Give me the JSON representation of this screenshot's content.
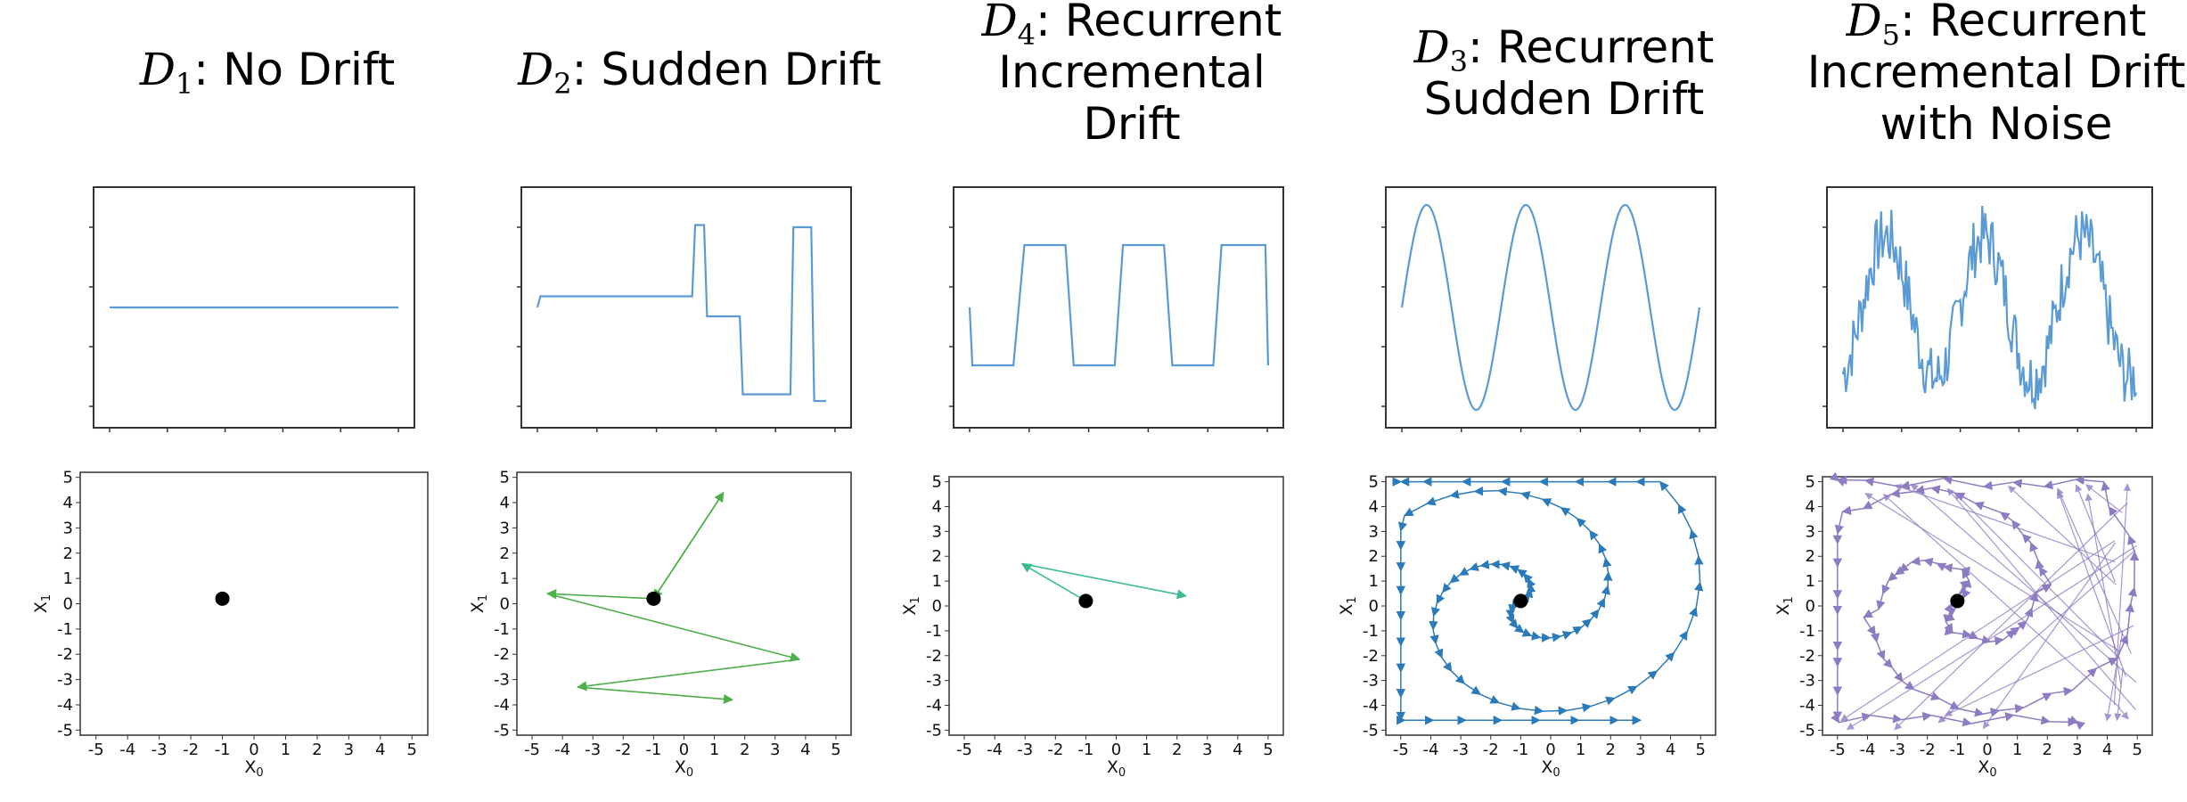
{
  "panels": [
    {
      "id": "d1",
      "title_var": "D",
      "title_sub": "1",
      "title_lines": [
        ": No Drift"
      ],
      "line_color": "#5b9bd5",
      "arrow_color": "#4472c4",
      "line_values": [
        [
          0,
          0.5
        ],
        [
          1,
          0.5
        ]
      ],
      "trajectory": [],
      "start_point": [
        -1,
        0.2
      ],
      "arrows_style": "none"
    },
    {
      "id": "d2",
      "title_var": "D",
      "title_sub": "2",
      "title_lines": [
        ": Sudden Drift"
      ],
      "line_color": "#5b9bd5",
      "arrow_color": "#4daf4a",
      "line_values": [
        [
          0,
          0.5
        ],
        [
          0.01,
          0.55
        ],
        [
          0.52,
          0.55
        ],
        [
          0.53,
          0.87
        ],
        [
          0.56,
          0.87
        ],
        [
          0.57,
          0.46
        ],
        [
          0.68,
          0.46
        ],
        [
          0.69,
          0.11
        ],
        [
          0.85,
          0.11
        ],
        [
          0.86,
          0.86
        ],
        [
          0.92,
          0.86
        ],
        [
          0.93,
          0.08
        ],
        [
          0.97,
          0.08
        ]
      ],
      "trajectory": [
        [
          -1,
          0.2
        ],
        [
          1.3,
          4.4
        ],
        [
          -1,
          0.2
        ],
        [
          -4.5,
          0.4
        ],
        [
          3.8,
          -2.2
        ],
        [
          -3.5,
          -3.3
        ],
        [
          1.6,
          -3.8
        ]
      ],
      "start_point": [
        -1,
        0.2
      ],
      "arrows_style": "segment"
    },
    {
      "id": "d4",
      "title_var": "D",
      "title_sub": "4",
      "title_lines": [
        ": Recurrent",
        "Incremental",
        "Drift"
      ],
      "line_color": "#5b9bd5",
      "arrow_color": "#3cbc8d",
      "line_values": [
        [
          0,
          0.5
        ],
        [
          0.01,
          0.24
        ],
        [
          0.16,
          0.24
        ],
        [
          0.2,
          0.78
        ],
        [
          0.35,
          0.78
        ],
        [
          0.38,
          0.24
        ],
        [
          0.53,
          0.24
        ],
        [
          0.56,
          0.78
        ],
        [
          0.71,
          0.78
        ],
        [
          0.74,
          0.24
        ],
        [
          0.89,
          0.24
        ],
        [
          0.92,
          0.78
        ],
        [
          1.08,
          0.78
        ],
        [
          1.09,
          0.24
        ]
      ],
      "trajectory": [
        [
          -1,
          0.2
        ],
        [
          -3.1,
          1.7
        ],
        [
          2.3,
          0.4
        ]
      ],
      "start_point": [
        -1,
        0.2
      ],
      "arrows_style": "segment"
    },
    {
      "id": "d3",
      "title_var": "D",
      "title_sub": "3",
      "title_lines": [
        ": Recurrent",
        "Sudden Drift"
      ],
      "line_color": "#5b9bd5",
      "arrow_color": "#2b7bba",
      "line_values": [],
      "trajectory": [],
      "start_point": [
        -1,
        0.2
      ],
      "arrows_style": "spiral"
    },
    {
      "id": "d5",
      "title_var": "D",
      "title_sub": "5",
      "title_lines": [
        ": Recurrent",
        "Incremental Drift",
        "with Noise"
      ],
      "line_color": "#5b9bd5",
      "arrow_color": "#8e7cc3",
      "line_values": [],
      "trajectory": [],
      "start_point": [
        -1,
        0.2
      ],
      "arrows_style": "noisy_spiral"
    }
  ],
  "chart_data": [
    {
      "type": "line",
      "title": "D1: No Drift",
      "x": [
        0,
        1
      ],
      "y": [
        0.5,
        0.5
      ]
    },
    {
      "type": "line",
      "title": "D2: Sudden Drift",
      "description_levels": [
        0.55,
        0.87,
        0.46,
        0.11,
        0.86,
        0.08
      ]
    },
    {
      "type": "line",
      "title": "D4: Recurrent Incremental Drift",
      "levels": [
        0.24,
        0.78
      ]
    },
    {
      "type": "line",
      "title": "D3: Recurrent Sudden Drift",
      "function": "sine",
      "periods": 3
    },
    {
      "type": "line",
      "title": "D5: Recurrent Incremental Drift with Noise",
      "function": "noisy sawtooth",
      "periods": 3
    },
    {
      "type": "scatter",
      "xlabel": "X0",
      "ylabel": "X1",
      "xlim": [
        -5,
        5
      ],
      "ylim": [
        -5,
        5
      ],
      "ticks": [
        -5,
        -4,
        -3,
        -2,
        -1,
        0,
        1,
        2,
        3,
        4,
        5
      ],
      "start_point": [
        -1,
        0.2
      ]
    }
  ],
  "axes": {
    "xlabel": "X",
    "xsub": "0",
    "ylabel": "X",
    "ysub": "1",
    "ticks": [
      "-5",
      "-4",
      "-3",
      "-2",
      "-1",
      "0",
      "1",
      "2",
      "3",
      "4",
      "5"
    ]
  }
}
